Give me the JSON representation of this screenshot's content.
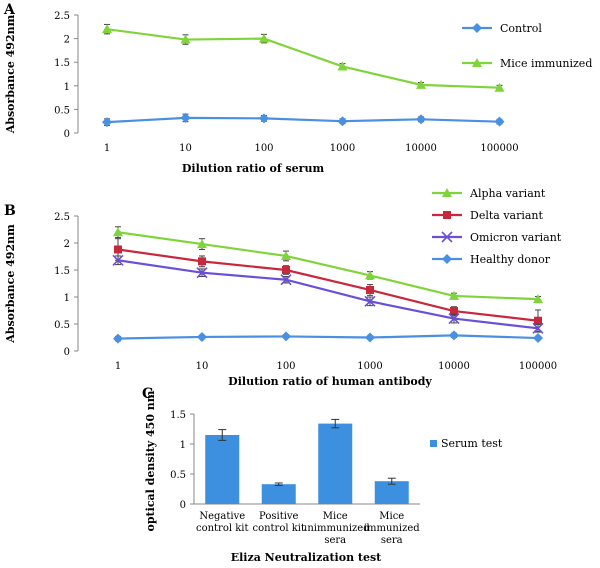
{
  "chart_data": [
    {
      "panel": "A",
      "type": "line",
      "categories": [
        "1",
        "10",
        "100",
        "1000",
        "10000",
        "100000"
      ],
      "ylabel": "Absorbance 492nm",
      "xlabel": "Dilution ratio of serum",
      "ylim": [
        0,
        2.5
      ],
      "yticks": [
        "0",
        "0.5",
        "1",
        "1.5",
        "2",
        "2.5"
      ],
      "legend_position": "right",
      "series": [
        {
          "name": "Control",
          "marker": "diamond",
          "color": "#4a90e2",
          "values": [
            0.23,
            0.32,
            0.31,
            0.25,
            0.29,
            0.24
          ],
          "errors": [
            0.07,
            0.08,
            0.06,
            0.05,
            0.05,
            0.05
          ]
        },
        {
          "name": "Mice immunized",
          "marker": "triangle",
          "color": "#7fd43a",
          "values": [
            2.2,
            1.98,
            2.0,
            1.41,
            1.02,
            0.96
          ],
          "errors": [
            0.1,
            0.1,
            0.09,
            0.06,
            0.05,
            0.05
          ]
        }
      ]
    },
    {
      "panel": "B",
      "type": "line",
      "categories": [
        "1",
        "10",
        "100",
        "1000",
        "10000",
        "100000"
      ],
      "ylabel": "Absorbance 492nm",
      "xlabel": "Dilution ratio of human antibody",
      "ylim": [
        0,
        2.5
      ],
      "yticks": [
        "0",
        "0.5",
        "1",
        "1.5",
        "2",
        "2.5"
      ],
      "legend_position": "top-right",
      "series": [
        {
          "name": "Alpha variant",
          "marker": "triangle",
          "color": "#7fd43a",
          "values": [
            2.2,
            1.98,
            1.76,
            1.4,
            1.02,
            0.96
          ],
          "errors": [
            0.1,
            0.1,
            0.09,
            0.07,
            0.05,
            0.05
          ]
        },
        {
          "name": "Delta variant",
          "marker": "square",
          "color": "#c8283c",
          "values": [
            1.88,
            1.66,
            1.5,
            1.13,
            0.74,
            0.56
          ],
          "errors": [
            0.2,
            0.1,
            0.08,
            0.1,
            0.08,
            0.2
          ]
        },
        {
          "name": "Omicron variant",
          "marker": "x",
          "color": "#6a4fd8",
          "values": [
            1.68,
            1.45,
            1.32,
            0.92,
            0.6,
            0.42
          ],
          "errors": [
            0.08,
            0.07,
            0.06,
            0.08,
            0.08,
            0.07
          ]
        },
        {
          "name": "Healthy donor",
          "marker": "diamond",
          "color": "#4a90e2",
          "values": [
            0.23,
            0.26,
            0.27,
            0.25,
            0.29,
            0.24
          ],
          "errors": [
            0.04,
            0.03,
            0.03,
            0.03,
            0.04,
            0.03
          ]
        }
      ]
    },
    {
      "panel": "C",
      "type": "bar",
      "categories": [
        [
          "Negative",
          "control kit"
        ],
        [
          "Positive",
          "control kit"
        ],
        [
          "Mice",
          "unimmunized",
          "sera"
        ],
        [
          "Mice",
          "immunized",
          "sera"
        ]
      ],
      "ylabel": "optical density 450 nm",
      "xlabel": "Eliza Neutralization test",
      "ylim": [
        0,
        1.5
      ],
      "yticks": [
        "0",
        "0.5",
        "1",
        "1.5"
      ],
      "legend_position": "right",
      "series": [
        {
          "name": "Serum test",
          "color": "#3d8fe0",
          "values": [
            1.15,
            0.33,
            1.34,
            0.38
          ],
          "errors": [
            0.09,
            0.02,
            0.07,
            0.05
          ]
        }
      ]
    }
  ]
}
